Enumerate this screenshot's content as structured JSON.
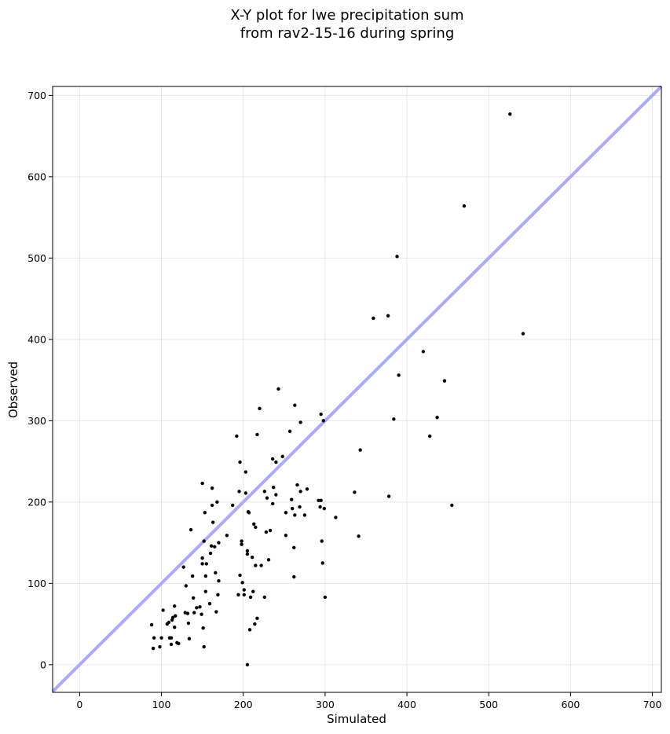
{
  "chart_data": {
    "type": "scatter",
    "title_lines": [
      "X-Y plot for lwe precipitation sum",
      "from rav2-15-16 during spring"
    ],
    "xlabel": "Simulated",
    "ylabel": "Observed",
    "xlim": [
      -33,
      711
    ],
    "ylim": [
      -34,
      711
    ],
    "xticks": [
      0,
      100,
      200,
      300,
      400,
      500,
      600,
      700
    ],
    "yticks": [
      0,
      100,
      200,
      300,
      400,
      500,
      600,
      700
    ],
    "grid": true,
    "identity_line": {
      "from": [
        -33,
        -33
      ],
      "to": [
        711,
        711
      ],
      "color": "#aaaaff"
    },
    "point_color": "#000000",
    "points": [
      [
        88,
        49
      ],
      [
        90,
        20
      ],
      [
        91,
        33
      ],
      [
        98,
        22
      ],
      [
        100,
        33
      ],
      [
        102,
        67
      ],
      [
        107,
        50
      ],
      [
        109,
        52
      ],
      [
        110,
        33
      ],
      [
        112,
        25
      ],
      [
        112,
        33
      ],
      [
        113,
        55
      ],
      [
        114,
        58
      ],
      [
        116,
        46
      ],
      [
        116,
        72
      ],
      [
        117,
        60
      ],
      [
        119,
        27
      ],
      [
        121,
        26
      ],
      [
        127,
        120
      ],
      [
        129,
        64
      ],
      [
        130,
        97
      ],
      [
        132,
        63
      ],
      [
        133,
        51
      ],
      [
        134,
        32
      ],
      [
        136,
        166
      ],
      [
        138,
        109
      ],
      [
        139,
        82
      ],
      [
        140,
        64
      ],
      [
        143,
        70
      ],
      [
        147,
        71
      ],
      [
        149,
        62
      ],
      [
        150,
        124
      ],
      [
        150,
        131
      ],
      [
        150,
        223
      ],
      [
        151,
        45
      ],
      [
        152,
        152
      ],
      [
        152,
        22
      ],
      [
        153,
        187
      ],
      [
        154,
        109
      ],
      [
        154,
        90
      ],
      [
        155,
        124
      ],
      [
        159,
        75
      ],
      [
        160,
        137
      ],
      [
        161,
        146
      ],
      [
        162,
        217
      ],
      [
        162,
        196
      ],
      [
        163,
        175
      ],
      [
        165,
        145
      ],
      [
        166,
        113
      ],
      [
        167,
        65
      ],
      [
        168,
        200
      ],
      [
        169,
        86
      ],
      [
        170,
        103
      ],
      [
        170,
        150
      ],
      [
        180,
        159
      ],
      [
        187,
        196
      ],
      [
        192,
        281
      ],
      [
        194,
        86
      ],
      [
        195,
        213
      ],
      [
        196,
        249
      ],
      [
        196,
        110
      ],
      [
        198,
        148
      ],
      [
        198,
        152
      ],
      [
        199,
        101
      ],
      [
        201,
        92
      ],
      [
        201,
        86
      ],
      [
        203,
        211
      ],
      [
        203,
        237
      ],
      [
        205,
        136
      ],
      [
        205,
        0
      ],
      [
        205,
        140
      ],
      [
        206,
        188
      ],
      [
        207,
        187
      ],
      [
        208,
        43
      ],
      [
        209,
        83
      ],
      [
        211,
        132
      ],
      [
        212,
        90
      ],
      [
        213,
        173
      ],
      [
        214,
        50
      ],
      [
        215,
        122
      ],
      [
        215,
        169
      ],
      [
        217,
        283
      ],
      [
        217,
        57
      ],
      [
        220,
        315
      ],
      [
        222,
        122
      ],
      [
        226,
        83
      ],
      [
        226,
        213
      ],
      [
        228,
        163
      ],
      [
        229,
        205
      ],
      [
        231,
        129
      ],
      [
        233,
        165
      ],
      [
        236,
        198
      ],
      [
        236,
        253
      ],
      [
        237,
        218
      ],
      [
        240,
        209
      ],
      [
        240,
        249
      ],
      [
        243,
        339
      ],
      [
        248,
        256
      ],
      [
        252,
        187
      ],
      [
        252,
        159
      ],
      [
        257,
        287
      ],
      [
        259,
        203
      ],
      [
        260,
        192
      ],
      [
        262,
        108
      ],
      [
        262,
        144
      ],
      [
        263,
        184
      ],
      [
        263,
        319
      ],
      [
        266,
        221
      ],
      [
        269,
        194
      ],
      [
        270,
        213
      ],
      [
        270,
        298
      ],
      [
        275,
        184
      ],
      [
        278,
        216
      ],
      [
        292,
        202
      ],
      [
        294,
        194
      ],
      [
        295,
        202
      ],
      [
        295,
        308
      ],
      [
        296,
        152
      ],
      [
        297,
        125
      ],
      [
        298,
        300
      ],
      [
        299,
        192
      ],
      [
        300,
        83
      ],
      [
        313,
        181
      ],
      [
        336,
        212
      ],
      [
        341,
        158
      ],
      [
        343,
        264
      ],
      [
        359,
        426
      ],
      [
        377,
        429
      ],
      [
        378,
        207
      ],
      [
        384,
        302
      ],
      [
        388,
        502
      ],
      [
        390,
        356
      ],
      [
        420,
        385
      ],
      [
        428,
        281
      ],
      [
        437,
        304
      ],
      [
        446,
        349
      ],
      [
        455,
        196
      ],
      [
        470,
        564
      ],
      [
        526,
        677
      ],
      [
        542,
        407
      ]
    ]
  }
}
